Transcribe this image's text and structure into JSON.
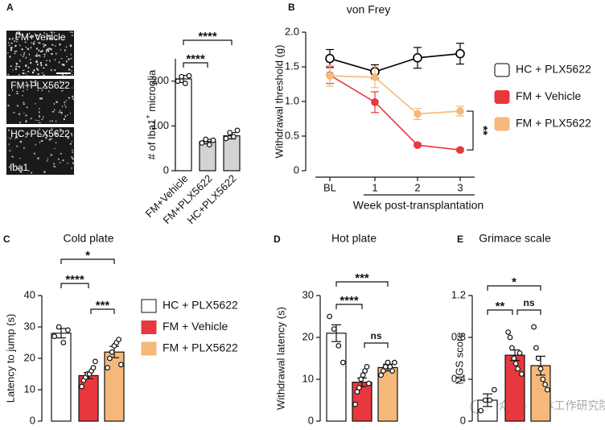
{
  "images": {
    "panel": "A",
    "labels": [
      "FM+Vehicle",
      "FM+PLX5622",
      "HC+PLX5622"
    ],
    "stain": "Iba1"
  },
  "chart_data": [
    {
      "type": "bar",
      "ylabel": [
        "# of Iba1",
        "+",
        " microglia"
      ],
      "categories": [
        "FM+Vehicle",
        "FM+PLX5622",
        "HC+PLX5622"
      ],
      "values": [
        205,
        65,
        78
      ],
      "errors": [
        8,
        5,
        7
      ],
      "points": [
        [
          200,
          210,
          195,
          212
        ],
        [
          62,
          70,
          58,
          68
        ],
        [
          72,
          85,
          76,
          90
        ]
      ],
      "colors": [
        "#ffffff",
        "#d3d3d3",
        "#d3d3d3"
      ],
      "ylim": [
        0,
        250
      ],
      "yticks": [
        0,
        100,
        200
      ],
      "annotations": [
        "****",
        "****"
      ]
    },
    {
      "type": "line",
      "panel": "B",
      "title": "von Frey",
      "ylabel": "Withdrawal threshold (g)",
      "xlabel": "Week post-transplantation",
      "categories": [
        "BL",
        "1",
        "2",
        "3"
      ],
      "series": [
        {
          "name": "HC + PLX5622",
          "color": "#000000",
          "fill": "#ffffff",
          "values": [
            1.62,
            1.43,
            1.63,
            1.69
          ],
          "errors": [
            0.13,
            0.1,
            0.15,
            0.15
          ]
        },
        {
          "name": "FM + Vehicle",
          "color": "#e8383d",
          "fill": "#e8383d",
          "values": [
            1.38,
            0.99,
            0.37,
            0.3
          ],
          "errors": [
            0.12,
            0.15,
            0.02,
            0.02
          ]
        },
        {
          "name": "FM + PLX5622",
          "color": "#f4b97a",
          "fill": "#f4b97a",
          "values": [
            1.37,
            1.35,
            0.82,
            0.86
          ],
          "errors": [
            0.15,
            0.15,
            0.08,
            0.07
          ]
        }
      ],
      "ylim": [
        0,
        2
      ],
      "yticks": [
        0,
        0.5,
        {
          "value": 1,
          "label": "1.0"
        },
        1.5,
        {
          "value": 2,
          "label": "2.0"
        }
      ],
      "annotations": [
        "**"
      ]
    },
    {
      "type": "bar",
      "panel": "C",
      "title": "Cold plate",
      "ylabel": "Latency to jump (s)",
      "categories": [
        "HC + PLX5622",
        "FM + Vehicle",
        "FM + PLX5622"
      ],
      "values": [
        28,
        14.5,
        22
      ],
      "errors": [
        1.5,
        1,
        1.8
      ],
      "points": [
        [
          27,
          30,
          25,
          29
        ],
        [
          11,
          13,
          14,
          15,
          15,
          16,
          17,
          19
        ],
        [
          17,
          20,
          22,
          24,
          25,
          26,
          18
        ]
      ],
      "colors": [
        "#ffffff",
        "#e8383d",
        "#f4b97a"
      ],
      "ylim": [
        0,
        40
      ],
      "yticks": [
        0,
        10,
        20,
        30,
        40
      ],
      "annotations": [
        "*",
        "****",
        "***"
      ]
    },
    {
      "type": "bar",
      "panel": "D",
      "title": "Hot plate",
      "ylabel": "Withdrawal latency (s)",
      "values": [
        21,
        9.3,
        12.8
      ],
      "errors": [
        2,
        1,
        0.8
      ],
      "points": [
        [
          25,
          22,
          18,
          14
        ],
        [
          4,
          7,
          8,
          10,
          11,
          12,
          13,
          9
        ],
        [
          11,
          12,
          13,
          14,
          13,
          12,
          14
        ]
      ],
      "colors": [
        "#ffffff",
        "#e8383d",
        "#f4b97a"
      ],
      "ylim": [
        0,
        30
      ],
      "yticks": [
        0,
        10,
        20,
        30
      ],
      "annotations": [
        "***",
        "****",
        "ns"
      ]
    },
    {
      "type": "bar",
      "panel": "E",
      "title": "Grimace scale",
      "ylabel": "MGS score",
      "values": [
        0.2,
        0.63,
        0.53
      ],
      "errors": [
        0.06,
        0.05,
        0.09
      ],
      "points": [
        [
          0.1,
          0.2,
          0.2,
          0.3
        ],
        [
          0.85,
          0.8,
          0.7,
          0.6,
          0.55,
          0.5,
          0.65,
          0.45
        ],
        [
          0.9,
          0.7,
          0.6,
          0.5,
          0.4,
          0.35,
          0.3
        ]
      ],
      "colors": [
        "#ffffff",
        "#e8383d",
        "#f4b97a"
      ],
      "ylim": [
        0,
        1.2
      ],
      "yticks": [
        0,
        0.4,
        0.8,
        1.2
      ],
      "annotations": [
        "*",
        "**",
        "ns"
      ]
    }
  ],
  "watermark": "公众号 · 脑体工作研究院"
}
